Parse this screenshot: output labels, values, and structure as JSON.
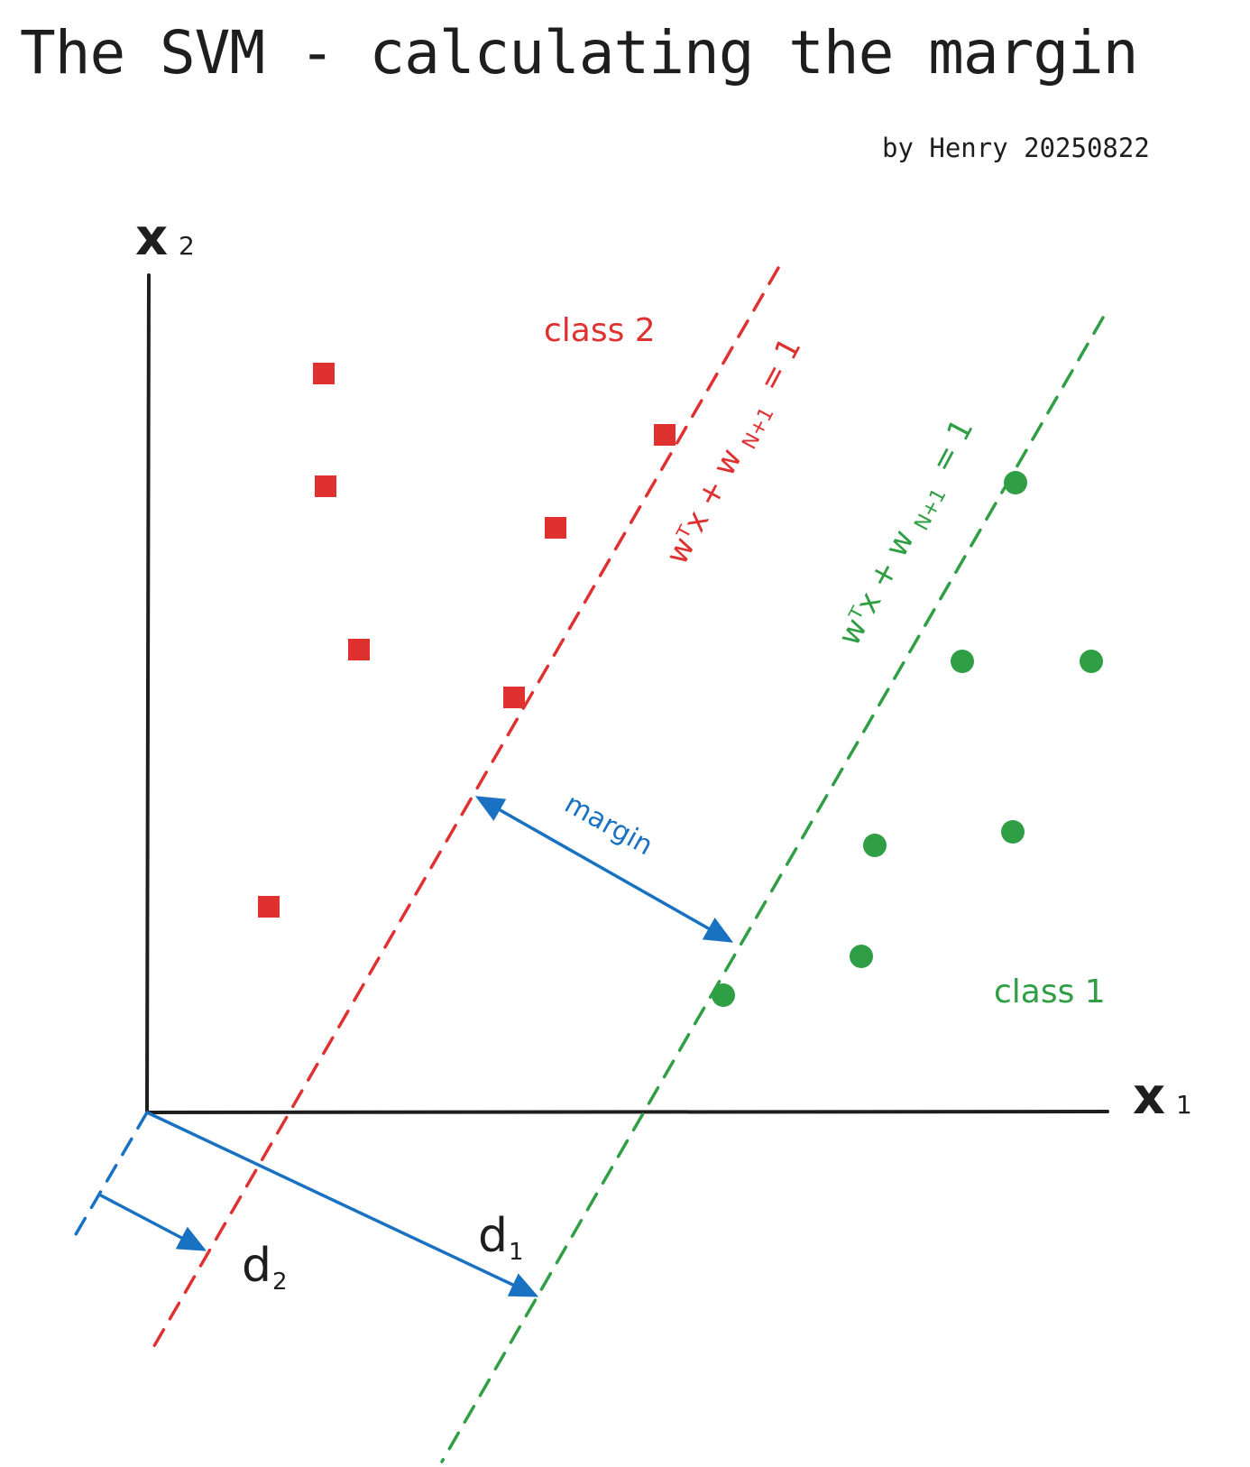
{
  "title": "The SVM - calculating the margin",
  "byline": "by Henry 20250822",
  "axes": {
    "x": "x",
    "x_sub": "1",
    "y": "x",
    "y_sub": "2"
  },
  "labels": {
    "class2": "class 2",
    "class1": "class 1",
    "margin": "margin",
    "d1": "d",
    "d1_sub": "1",
    "d2": "d",
    "d2_sub": "2"
  },
  "equations": {
    "red": {
      "main": "wᵀx + w",
      "sub": "N+1",
      "rhs": "= 1"
    },
    "green": {
      "main": "wᵀx + w",
      "sub": "N+1",
      "rhs": "= 1"
    }
  },
  "colors": {
    "axis": "#1e1e1e",
    "class2": "#e03131",
    "class1": "#2f9e44",
    "annotation": "#1971c2"
  }
}
